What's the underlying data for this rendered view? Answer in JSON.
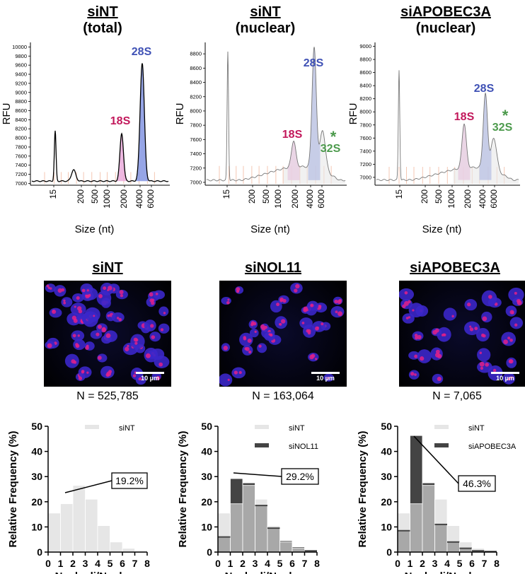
{
  "electro": [
    {
      "title1": "siNT",
      "title2": "(total)",
      "ylabel": "RFU",
      "xlabel": "Size (nt)",
      "yticks": [
        7000,
        7200,
        7400,
        7600,
        7800,
        8000,
        8200,
        8400,
        8600,
        8800,
        9000,
        9200,
        9400,
        9600,
        9800,
        10000
      ],
      "ylim": [
        6960,
        10100
      ],
      "xticks": [
        "15",
        "200",
        "500",
        "1000",
        "2000",
        "4000",
        "6000"
      ],
      "peaks": [
        {
          "label": "18S",
          "color": "#c2185b"
        },
        {
          "label": "28S",
          "color": "#3f51b5"
        }
      ]
    },
    {
      "title1": "siNT",
      "title2": "(nuclear)",
      "ylabel": "RFU",
      "xlabel": "Size (nt)",
      "yticks": [
        7000,
        7200,
        7400,
        7600,
        7800,
        8000,
        8200,
        8400,
        8600,
        8800
      ],
      "ylim": [
        6960,
        8960
      ],
      "xticks": [
        "15",
        "200",
        "500",
        "1000",
        "2000",
        "4000",
        "6000"
      ],
      "peaks": [
        {
          "label": "18S",
          "color": "#c2185b"
        },
        {
          "label": "28S",
          "color": "#3f51b5"
        },
        {
          "label": "32S",
          "color": "#4c9a4c"
        }
      ]
    },
    {
      "title1": "siAPOBEC3A",
      "title2": "(nuclear)",
      "ylabel": "RFU",
      "xlabel": "Size (nt)",
      "yticks": [
        7000,
        7200,
        7400,
        7600,
        7800,
        8000,
        8200,
        8400,
        8600,
        8800,
        9000
      ],
      "ylim": [
        6880,
        9060
      ],
      "xticks": [
        "15",
        "200",
        "500",
        "1000",
        "2000",
        "4000",
        "6000"
      ],
      "peaks": [
        {
          "label": "18S",
          "color": "#c2185b"
        },
        {
          "label": "28S",
          "color": "#3f51b5"
        },
        {
          "label": "32S",
          "color": "#4c9a4c"
        }
      ]
    }
  ],
  "micrographs": [
    {
      "title": "siNT",
      "scale": "10 µm",
      "n": "N = 525,785"
    },
    {
      "title": "siNOL11",
      "scale": "10 µm",
      "n": "N = 163,064"
    },
    {
      "title": "siAPOBEC3A",
      "scale": "10 µm",
      "n": "N = 7,065"
    }
  ],
  "star_label": "*",
  "chart_data": [
    {
      "type": "bar",
      "xlabel": "Nucleoli/Nucleus",
      "ylabel": "Relative Frequency (%)",
      "ylim": [
        0,
        50
      ],
      "yticks": [
        0,
        10,
        20,
        30,
        40,
        50
      ],
      "categories": [
        0,
        1,
        2,
        3,
        4,
        5,
        6,
        7,
        8
      ],
      "series": [
        {
          "name": "siNT",
          "color": "#e6e6e6",
          "values": [
            15.5,
            19.2,
            26.5,
            21.0,
            10.5,
            4.0,
            1.5,
            0.5,
            0.2
          ]
        }
      ],
      "callout": "19.2%"
    },
    {
      "type": "bar",
      "xlabel": "Nucleoli/Nucleus",
      "ylabel": "Relative Frequency (%)",
      "ylim": [
        0,
        50
      ],
      "yticks": [
        0,
        10,
        20,
        30,
        40,
        50
      ],
      "categories": [
        0,
        1,
        2,
        3,
        4,
        5,
        6,
        7,
        8
      ],
      "series": [
        {
          "name": "siNT",
          "color": "#e6e6e6",
          "values": [
            15.5,
            19.2,
            26.5,
            21.0,
            10.5,
            4.0,
            1.5,
            0.5,
            0.2
          ]
        },
        {
          "name": "siNOL11",
          "color": "#444444",
          "values": [
            6.0,
            29.2,
            27.5,
            18.5,
            9.5,
            4.5,
            2.0,
            0.5,
            0.2
          ]
        }
      ],
      "callout": "29.2%"
    },
    {
      "type": "bar",
      "xlabel": "Nucleoli/Nucleus",
      "ylabel": "Relative Frequency (%)",
      "ylim": [
        0,
        50
      ],
      "yticks": [
        0,
        10,
        20,
        30,
        40,
        50
      ],
      "categories": [
        0,
        1,
        2,
        3,
        4,
        5,
        6,
        7,
        8
      ],
      "series": [
        {
          "name": "siNT",
          "color": "#e6e6e6",
          "values": [
            15.5,
            19.2,
            26.5,
            21.0,
            10.5,
            4.0,
            1.5,
            0.5,
            0.2
          ]
        },
        {
          "name": "siAPOBEC3A",
          "color": "#444444",
          "values": [
            8.5,
            46.3,
            27.5,
            11.0,
            4.0,
            1.5,
            0.5,
            0.2,
            0.1
          ]
        }
      ],
      "callout": "46.3%"
    }
  ]
}
